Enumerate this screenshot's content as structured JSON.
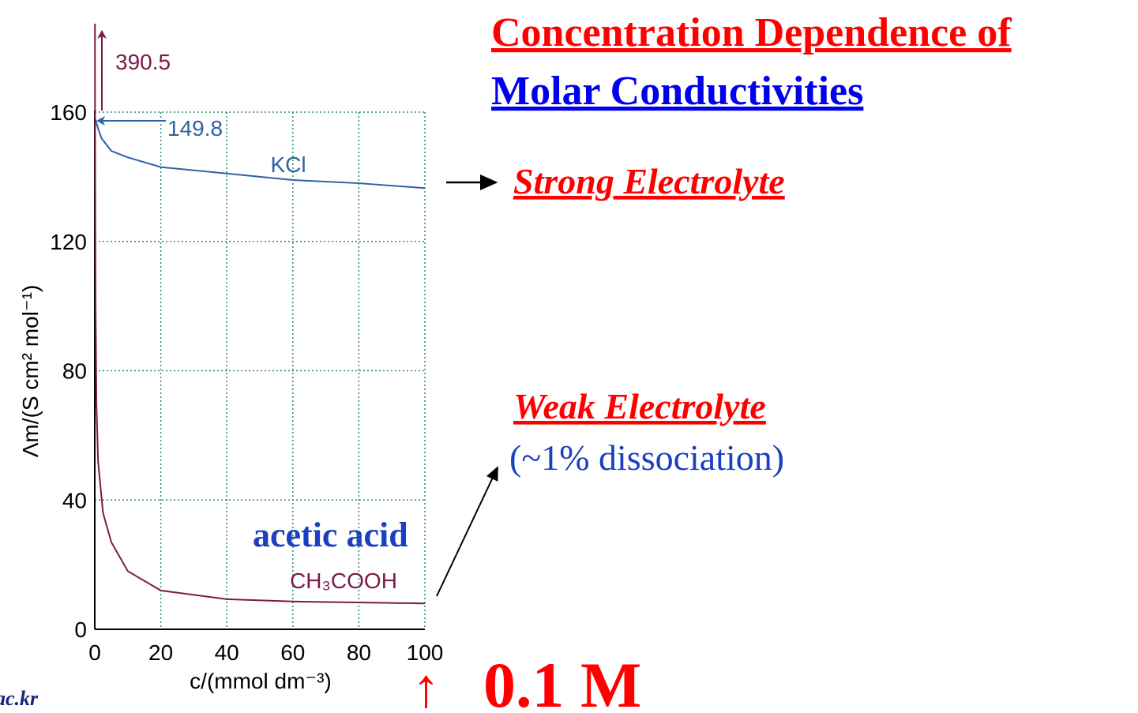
{
  "title": {
    "line1": "Concentration Dependence of",
    "line2": "Molar Conductivities"
  },
  "labels": {
    "strong": "Strong Electrolyte",
    "weak": "Weak Electrolyte",
    "weak_note": "(~1% dissociation)",
    "acetic": "acetic acid",
    "up_arrow": "↑",
    "conc": "0.1 M",
    "footer": "ac.kr"
  },
  "chart_data": {
    "type": "line",
    "x_label": "c/(mmol dm⁻³)",
    "y_label": "Λm/(S cm² mol⁻¹)",
    "annotations": [
      "390.5",
      "149.8"
    ],
    "xlim": [
      0,
      100
    ],
    "xticks": [
      0,
      20,
      40,
      60,
      80,
      100
    ],
    "ylim": [
      0,
      160
    ],
    "yticks": [
      0,
      40,
      80,
      120,
      160
    ],
    "grid": true,
    "series": [
      {
        "name": "KCl",
        "color": "#2f62a0",
        "x": [
          0.1,
          1,
          2,
          5,
          10,
          20,
          40,
          60,
          80,
          100
        ],
        "values": [
          158,
          155,
          152,
          148,
          146,
          143,
          141,
          139,
          138,
          136.5
        ]
      },
      {
        "name": "CH₃COOH",
        "color": "#7a1a4a",
        "x": [
          0.05,
          0.1,
          0.25,
          0.5,
          1,
          2.5,
          5,
          10,
          20,
          40,
          60,
          80,
          100
        ],
        "values": [
          190,
          150,
          100,
          70,
          52,
          36,
          27,
          18,
          12,
          9.3,
          8.6,
          8.3,
          8
        ]
      }
    ]
  }
}
